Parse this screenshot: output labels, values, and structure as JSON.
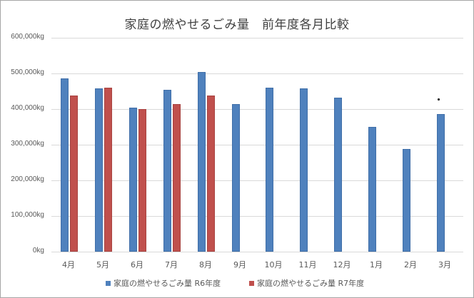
{
  "chart_data": {
    "type": "bar",
    "title": "家庭の燃やせるごみ量　前年度各月比較",
    "xlabel": "",
    "ylabel": "",
    "ylim": [
      0,
      600000
    ],
    "yticks": [
      "0kg",
      "100,000kg",
      "200,000kg",
      "300,000kg",
      "400,000kg",
      "500,000kg",
      "600,000kg"
    ],
    "grid": true,
    "legend_position": "bottom",
    "categories": [
      "4月",
      "5月",
      "6月",
      "7月",
      "8月",
      "9月",
      "10月",
      "11月",
      "12月",
      "1月",
      "2月",
      "3月"
    ],
    "series": [
      {
        "name": "家庭の燃やせるごみ量 R6年度",
        "color": "#4f81bd",
        "values": [
          487000,
          458000,
          405000,
          455000,
          505000,
          414000,
          460000,
          459000,
          432000,
          350000,
          288000,
          387000
        ]
      },
      {
        "name": "家庭の燃やせるごみ量 R7年度",
        "color": "#c0504d",
        "values": [
          439000,
          460000,
          400000,
          414000,
          439000,
          null,
          null,
          null,
          null,
          null,
          null,
          null
        ]
      }
    ]
  }
}
